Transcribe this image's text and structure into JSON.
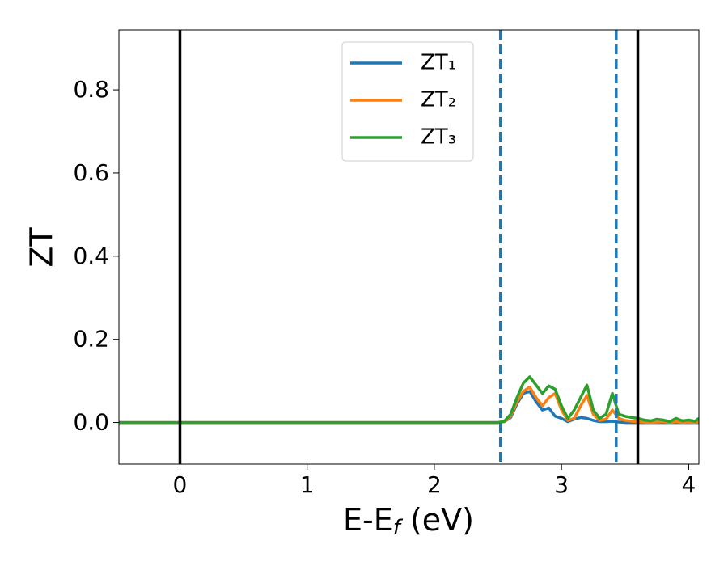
{
  "chart_data": {
    "type": "line",
    "xlabel": [
      "E-E",
      "f",
      " (eV)"
    ],
    "ylabel": "ZT",
    "xlim": [
      -0.48,
      4.08
    ],
    "ylim": [
      -0.1,
      0.944
    ],
    "xticks": [
      0,
      1,
      2,
      3,
      4
    ],
    "yticks": [
      {
        "value": 0,
        "label": "0.0"
      },
      0.2,
      0.4,
      0.6,
      0.8
    ],
    "legend": "upper center",
    "x": [
      -0.48,
      2.5,
      2.55,
      2.6,
      2.65,
      2.7,
      2.75,
      2.8,
      2.85,
      2.9,
      2.95,
      3.0,
      3.05,
      3.1,
      3.15,
      3.2,
      3.25,
      3.3,
      3.35,
      3.4,
      3.45,
      3.5,
      3.55,
      3.6,
      3.65,
      3.7,
      3.75,
      3.8,
      3.85,
      3.9,
      3.95,
      4.0,
      4.05,
      4.08
    ],
    "series": [
      {
        "name": "ZT₁",
        "color": "#1f77b4",
        "values": [
          0,
          0,
          0.002,
          0.012,
          0.045,
          0.07,
          0.075,
          0.05,
          0.03,
          0.035,
          0.015,
          0.01,
          0.002,
          0.008,
          0.012,
          0.01,
          0.005,
          0.002,
          0.002,
          0.003,
          0.001,
          0,
          0,
          0,
          0,
          0,
          0,
          0,
          0,
          0,
          0,
          0,
          0,
          0
        ]
      },
      {
        "name": "ZT₂",
        "color": "#ff7f0e",
        "values": [
          0,
          0,
          0.002,
          0.015,
          0.05,
          0.075,
          0.085,
          0.06,
          0.04,
          0.06,
          0.07,
          0.03,
          0.005,
          0.01,
          0.04,
          0.065,
          0.02,
          0.005,
          0.008,
          0.03,
          0.01,
          0.005,
          0.003,
          0.002,
          0.001,
          0,
          0.001,
          0.002,
          0,
          0.002,
          0,
          0.001,
          0,
          0.002
        ]
      },
      {
        "name": "ZT₃",
        "color": "#2ca02c",
        "values": [
          0,
          0,
          0.003,
          0.02,
          0.06,
          0.095,
          0.11,
          0.09,
          0.07,
          0.088,
          0.08,
          0.04,
          0.01,
          0.03,
          0.06,
          0.09,
          0.03,
          0.01,
          0.02,
          0.07,
          0.02,
          0.015,
          0.012,
          0.01,
          0.006,
          0.004,
          0.008,
          0.006,
          0.002,
          0.01,
          0.004,
          0.006,
          0.003,
          0.01
        ]
      }
    ],
    "vlines": [
      {
        "x": 0,
        "color": "#000000",
        "style": "solid"
      },
      {
        "x": 3.6,
        "color": "#000000",
        "style": "solid"
      },
      {
        "x": 2.52,
        "color": "#1f77b4",
        "style": "dashed"
      },
      {
        "x": 3.43,
        "color": "#1f77b4",
        "style": "dashed"
      }
    ]
  }
}
